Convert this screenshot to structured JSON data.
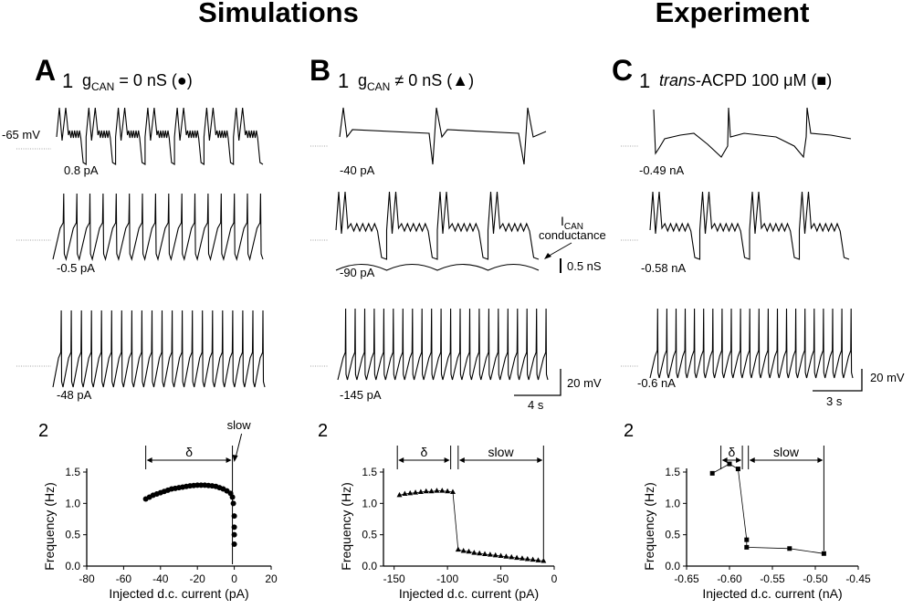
{
  "header": {
    "simulations": "Simulations",
    "experiment": "Experiment"
  },
  "panels": {
    "A": {
      "letter": "A",
      "index": "1",
      "title_prefix": "g",
      "title_sub": "CAN",
      "title_rest": " = 0 nS (●)"
    },
    "B": {
      "letter": "B",
      "index": "1",
      "title_prefix": "g",
      "title_sub": "CAN",
      "title_rest": " ≠ 0 nS (▲)"
    },
    "C": {
      "letter": "C",
      "index": "1",
      "title_italic": "trans",
      "title_rest": "-ACPD 100 μM (■)"
    }
  },
  "traces": {
    "A": {
      "vm_label": "-65 mV",
      "currents": [
        "0.8 pA",
        "-0.5 pA",
        "-48 pA"
      ]
    },
    "B": {
      "currents": [
        "-40 pA",
        "-90 pA",
        "-145 pA"
      ],
      "ican_main": "I",
      "ican_sub": "CAN",
      "ican_line2": "conductance",
      "scale_ns": "0.5 nS",
      "scale_mv": "20 mV",
      "scale_s": "4 s"
    },
    "C": {
      "currents": [
        "-0.49 nA",
        "-0.58 nA",
        "-0.6 nA"
      ],
      "scale_mv": "20 mV",
      "scale_s": "3 s"
    }
  },
  "plot_labels": {
    "index": "2",
    "ylabel": "Frequency (Hz)",
    "delta": "δ",
    "slow": "slow"
  },
  "chart_data": [
    {
      "type": "scatter",
      "panel": "A2",
      "xlabel": "Injected d.c. current (pA)",
      "ylabel": "Frequency (Hz)",
      "xlim": [
        -80,
        20
      ],
      "ylim": [
        0,
        1.5
      ],
      "xticks": [
        -80,
        -60,
        -40,
        -20,
        0,
        20
      ],
      "xtick_labels": [
        "-80",
        "-60",
        "-40",
        "-20",
        "0",
        "20"
      ],
      "yticks": [
        0,
        0.5,
        1.0,
        1.5
      ],
      "ytick_labels": [
        "0.0",
        "0.5",
        "1.0",
        "1.5"
      ],
      "marker": "circle",
      "connected": false,
      "x": [
        -48,
        -46,
        -44,
        -42,
        -40,
        -38,
        -36,
        -34,
        -32,
        -30,
        -28,
        -26,
        -24,
        -22,
        -20,
        -18,
        -16,
        -14,
        -12,
        -10,
        -8,
        -6,
        -4,
        -2,
        -1,
        -0.5,
        0,
        0,
        0,
        0
      ],
      "y": [
        1.07,
        1.1,
        1.13,
        1.15,
        1.17,
        1.19,
        1.21,
        1.23,
        1.24,
        1.25,
        1.26,
        1.27,
        1.28,
        1.285,
        1.29,
        1.29,
        1.29,
        1.285,
        1.28,
        1.27,
        1.25,
        1.23,
        1.2,
        1.16,
        1.1,
        1.0,
        0.8,
        0.62,
        0.5,
        0.35
      ],
      "annotations": {
        "delta_range": [
          -48,
          -1
        ],
        "slow_at": 0
      }
    },
    {
      "type": "scatter",
      "panel": "B2",
      "xlabel": "Injected d.c. current (pA)",
      "ylabel": "Frequency (Hz)",
      "xlim": [
        -160,
        0
      ],
      "ylim": [
        0,
        1.5
      ],
      "xticks": [
        -150,
        -100,
        -50,
        0
      ],
      "xtick_labels": [
        "-150",
        "-100",
        "-50",
        "0"
      ],
      "yticks": [
        0,
        0.5,
        1.0,
        1.5
      ],
      "ytick_labels": [
        "0.0",
        "0.5",
        "1.0",
        "1.5"
      ],
      "marker": "triangle",
      "connected": true,
      "x": [
        -145,
        -140,
        -135,
        -130,
        -125,
        -120,
        -115,
        -110,
        -105,
        -100,
        -95,
        -90,
        -85,
        -80,
        -75,
        -70,
        -65,
        -60,
        -55,
        -50,
        -45,
        -40,
        -35,
        -30,
        -25,
        -20,
        -15,
        -10
      ],
      "y": [
        1.13,
        1.15,
        1.16,
        1.17,
        1.18,
        1.19,
        1.19,
        1.2,
        1.2,
        1.19,
        1.18,
        0.26,
        0.24,
        0.23,
        0.21,
        0.2,
        0.19,
        0.18,
        0.17,
        0.16,
        0.15,
        0.14,
        0.13,
        0.12,
        0.11,
        0.1,
        0.09,
        0.08
      ],
      "annotations": {
        "delta_range": [
          -147,
          -97
        ],
        "slow_range": [
          -90,
          -10
        ]
      }
    },
    {
      "type": "scatter",
      "panel": "C2",
      "xlabel": "Injected d.c. current (nA)",
      "ylabel": "Frequency (Hz)",
      "xlim": [
        -0.65,
        -0.45
      ],
      "ylim": [
        0,
        1.5
      ],
      "xticks": [
        -0.65,
        -0.6,
        -0.55,
        -0.5,
        -0.45
      ],
      "xtick_labels": [
        "-0.65",
        "-0.60",
        "-0.55",
        "-0.50",
        "-0.45"
      ],
      "yticks": [
        0,
        0.5,
        1.0,
        1.5
      ],
      "ytick_labels": [
        "0.0",
        "0.5",
        "1.0",
        "1.5"
      ],
      "marker": "square",
      "connected": true,
      "x": [
        -0.62,
        -0.6,
        -0.59,
        -0.58,
        -0.58,
        -0.53,
        -0.49
      ],
      "y": [
        1.48,
        1.63,
        1.55,
        0.42,
        0.3,
        0.28,
        0.2
      ],
      "annotations": {
        "delta_range": [
          -0.61,
          -0.585
        ],
        "slow_range": [
          -0.578,
          -0.49
        ]
      }
    }
  ]
}
